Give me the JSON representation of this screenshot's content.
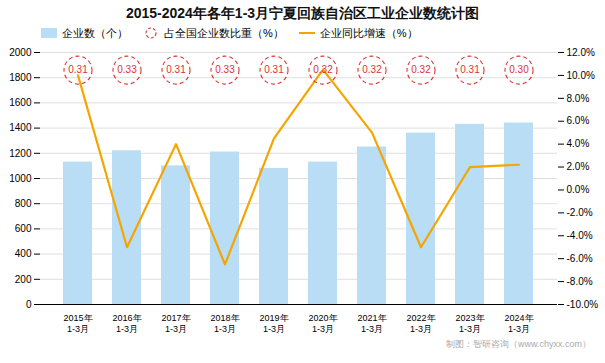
{
  "chart_data": {
    "type": "bar",
    "title": "2015-2024年各年1-3月宁夏回族自治区工业企业数统计图",
    "categories": [
      "2015年\n1-3月",
      "2016年\n1-3月",
      "2017年\n1-3月",
      "2018年\n1-3月",
      "2019年\n1-3月",
      "2020年\n1-3月",
      "2021年\n1-3月",
      "2022年\n1-3月",
      "2023年\n1-3月",
      "2024年\n1-3月"
    ],
    "series": [
      {
        "name": "企业数（个）",
        "type": "bar",
        "color": "#b8ddf5",
        "values": [
          1130,
          1220,
          1100,
          1210,
          1080,
          1130,
          1250,
          1360,
          1430,
          1440
        ]
      },
      {
        "name": "占全国企业数比重（%）",
        "type": "text",
        "color": "#dd3333",
        "marker": "circle",
        "line_style": "dashed",
        "data_labels": true,
        "values": [
          0.31,
          0.33,
          0.31,
          0.33,
          0.31,
          0.32,
          0.32,
          0.32,
          0.31,
          0.3
        ],
        "value_labels": [
          "0.31",
          "0.33",
          "0.31",
          "0.33",
          "0.31",
          "0.32",
          "0.32",
          "0.32",
          "0.31",
          "0.30"
        ]
      },
      {
        "name": "企业同比增速（%）",
        "type": "line",
        "axis": "y2",
        "color": "#f5a500",
        "values": [
          10.0,
          -5.0,
          4.0,
          -6.5,
          4.5,
          10.5,
          5.0,
          -5.0,
          2.0,
          2.2
        ]
      }
    ],
    "ylim": [
      0,
      2000
    ],
    "yticks": [
      0,
      200,
      400,
      600,
      800,
      1000,
      1200,
      1400,
      1600,
      1800,
      2000
    ],
    "y2lim": [
      -10.0,
      12.0
    ],
    "y2ticks": [
      {
        "value": -10.0,
        "label": "-10.0%"
      },
      {
        "value": -8.0,
        "label": "-8.0%"
      },
      {
        "value": -6.0,
        "label": "-6.0%"
      },
      {
        "value": -4.0,
        "label": "-4.0%"
      },
      {
        "value": -2.0,
        "label": "-2.0%"
      },
      {
        "value": 0.0,
        "label": "0.0%"
      },
      {
        "value": 2.0,
        "label": "2.0%"
      },
      {
        "value": 4.0,
        "label": "4.0%"
      },
      {
        "value": 6.0,
        "label": "6.0%"
      },
      {
        "value": 8.0,
        "label": "8.0%"
      },
      {
        "value": 10.0,
        "label": "10.0%"
      },
      {
        "value": 12.0,
        "label": "12.0%"
      }
    ],
    "grid": true,
    "legend": "upper left",
    "annotations": [
      "制图：智研咨询（www.chyxx.com）"
    ]
  }
}
